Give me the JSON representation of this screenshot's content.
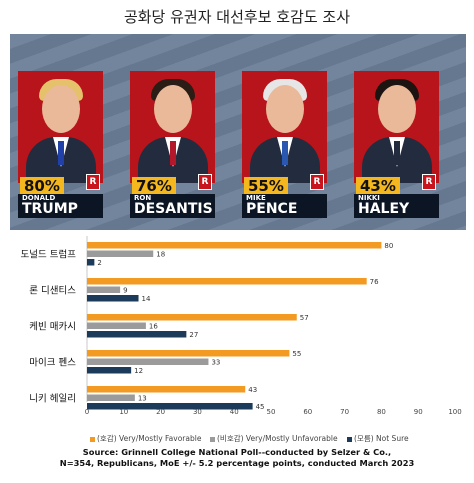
{
  "page": {
    "title": "공화당 유권자 대선후보 호감도 조사"
  },
  "banner": {
    "candidates": [
      {
        "pct": "80%",
        "first": "DONALD",
        "last": "TRUMP",
        "party": "R",
        "hair": "#e4c16a",
        "tie": "#2140a8"
      },
      {
        "pct": "76%",
        "first": "RON",
        "last": "DESANTIS",
        "party": "R",
        "hair": "#2a1d15",
        "tie": "#b3182a"
      },
      {
        "pct": "55%",
        "first": "MIKE",
        "last": "PENCE",
        "party": "R",
        "hair": "#e6e6e6",
        "tie": "#2a58b0"
      },
      {
        "pct": "43%",
        "first": "NIKKI",
        "last": "HALEY",
        "party": "R",
        "hair": "#1b1410",
        "tie": "#222c3e"
      }
    ]
  },
  "chart_data": {
    "type": "bar",
    "orientation": "horizontal",
    "categories": [
      "도널드 트럼프",
      "론 디샌티스",
      "케빈 매카시",
      "마이크 펜스",
      "니키 헤일리"
    ],
    "series": [
      {
        "name": "(호감) Very/Mostly Favorable",
        "values": [
          80,
          76,
          57,
          55,
          43
        ],
        "color": "#f39a22"
      },
      {
        "name": "(비호감) Very/Mostly Unfavorable",
        "values": [
          18,
          9,
          16,
          33,
          13
        ],
        "color": "#9b9b9b"
      },
      {
        "name": "(모름) Not Sure",
        "values": [
          2,
          14,
          27,
          12,
          45
        ],
        "color": "#1c3b5a"
      }
    ],
    "xlim": [
      0,
      100
    ],
    "xticks": [
      0,
      10,
      20,
      30,
      40,
      50,
      60,
      70,
      80,
      90,
      100
    ],
    "grid": false,
    "legend_position": "bottom"
  },
  "source": {
    "line1": "Source:  Grinnell College National Poll--conducted by Selzer & Co.,",
    "line2": "N=354, Republicans, MoE +/- 5.2 percentage points, conducted March 2023"
  }
}
